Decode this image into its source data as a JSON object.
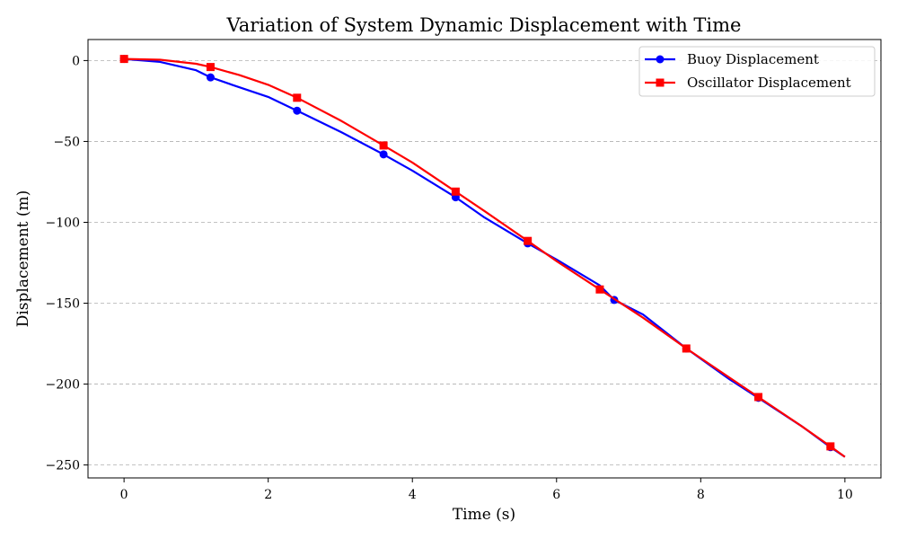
{
  "chart_data": {
    "type": "line",
    "title": "Variation of System Dynamic Displacement with Time",
    "xlabel": "Time (s)",
    "ylabel": "Displacement (m)",
    "xlim": [
      -0.5,
      10.5
    ],
    "ylim": [
      -258,
      13
    ],
    "xticks": [
      0,
      2,
      4,
      6,
      8,
      10
    ],
    "yticks": [
      0,
      -50,
      -100,
      -150,
      -200,
      -250
    ],
    "xtick_labels": [
      "0",
      "2",
      "4",
      "6",
      "8",
      "10"
    ],
    "ytick_labels": [
      "0",
      "−50",
      "−100",
      "−150",
      "−200",
      "−250"
    ],
    "grid": "y-axis dashed",
    "legend_position": "top-right",
    "series": [
      {
        "name": "Buoy Displacement",
        "color": "#0000ff",
        "marker": "circle",
        "curve": [
          [
            0,
            1
          ],
          [
            0.5,
            -0.8
          ],
          [
            1,
            -6
          ],
          [
            1.2,
            -10.4
          ],
          [
            1.5,
            -15
          ],
          [
            2,
            -22.5
          ],
          [
            2.4,
            -31
          ],
          [
            3,
            -44
          ],
          [
            3.6,
            -58
          ],
          [
            4,
            -68
          ],
          [
            4.6,
            -84.5
          ],
          [
            5,
            -97
          ],
          [
            5.6,
            -113
          ],
          [
            6,
            -123
          ],
          [
            6.6,
            -139
          ],
          [
            6.8,
            -148
          ],
          [
            7.2,
            -157
          ],
          [
            7.8,
            -178
          ],
          [
            8.4,
            -197
          ],
          [
            8.8,
            -208.5
          ],
          [
            9.4,
            -226
          ],
          [
            9.8,
            -239
          ],
          [
            10,
            -245
          ]
        ],
        "markers": [
          [
            0,
            1
          ],
          [
            1.2,
            -10.4
          ],
          [
            2.4,
            -31
          ],
          [
            3.6,
            -58
          ],
          [
            4.6,
            -84.5
          ],
          [
            5.6,
            -113
          ],
          [
            6.8,
            -148
          ],
          [
            7.8,
            -178
          ],
          [
            8.8,
            -208.5
          ],
          [
            9.8,
            -239
          ]
        ]
      },
      {
        "name": "Oscillator Displacement",
        "color": "#ff0000",
        "marker": "square",
        "curve": [
          [
            0,
            1
          ],
          [
            0.5,
            0.5
          ],
          [
            1,
            -2
          ],
          [
            1.2,
            -4
          ],
          [
            1.6,
            -9
          ],
          [
            2,
            -15
          ],
          [
            2.4,
            -23
          ],
          [
            3,
            -37
          ],
          [
            3.6,
            -52.5
          ],
          [
            4,
            -63
          ],
          [
            4.6,
            -81
          ],
          [
            5,
            -93
          ],
          [
            5.6,
            -111.5
          ],
          [
            6,
            -124
          ],
          [
            6.6,
            -141.5
          ],
          [
            7.2,
            -159
          ],
          [
            7.8,
            -178
          ],
          [
            8.4,
            -196
          ],
          [
            8.8,
            -208
          ],
          [
            9.4,
            -226
          ],
          [
            9.8,
            -238.5
          ],
          [
            10,
            -245
          ]
        ],
        "markers": [
          [
            0,
            1
          ],
          [
            1.2,
            -4
          ],
          [
            2.4,
            -23
          ],
          [
            3.6,
            -52.5
          ],
          [
            4.6,
            -81
          ],
          [
            5.6,
            -111.5
          ],
          [
            6.6,
            -141.5
          ],
          [
            7.8,
            -178
          ],
          [
            8.8,
            -208
          ],
          [
            9.8,
            -238.5
          ]
        ]
      }
    ]
  }
}
